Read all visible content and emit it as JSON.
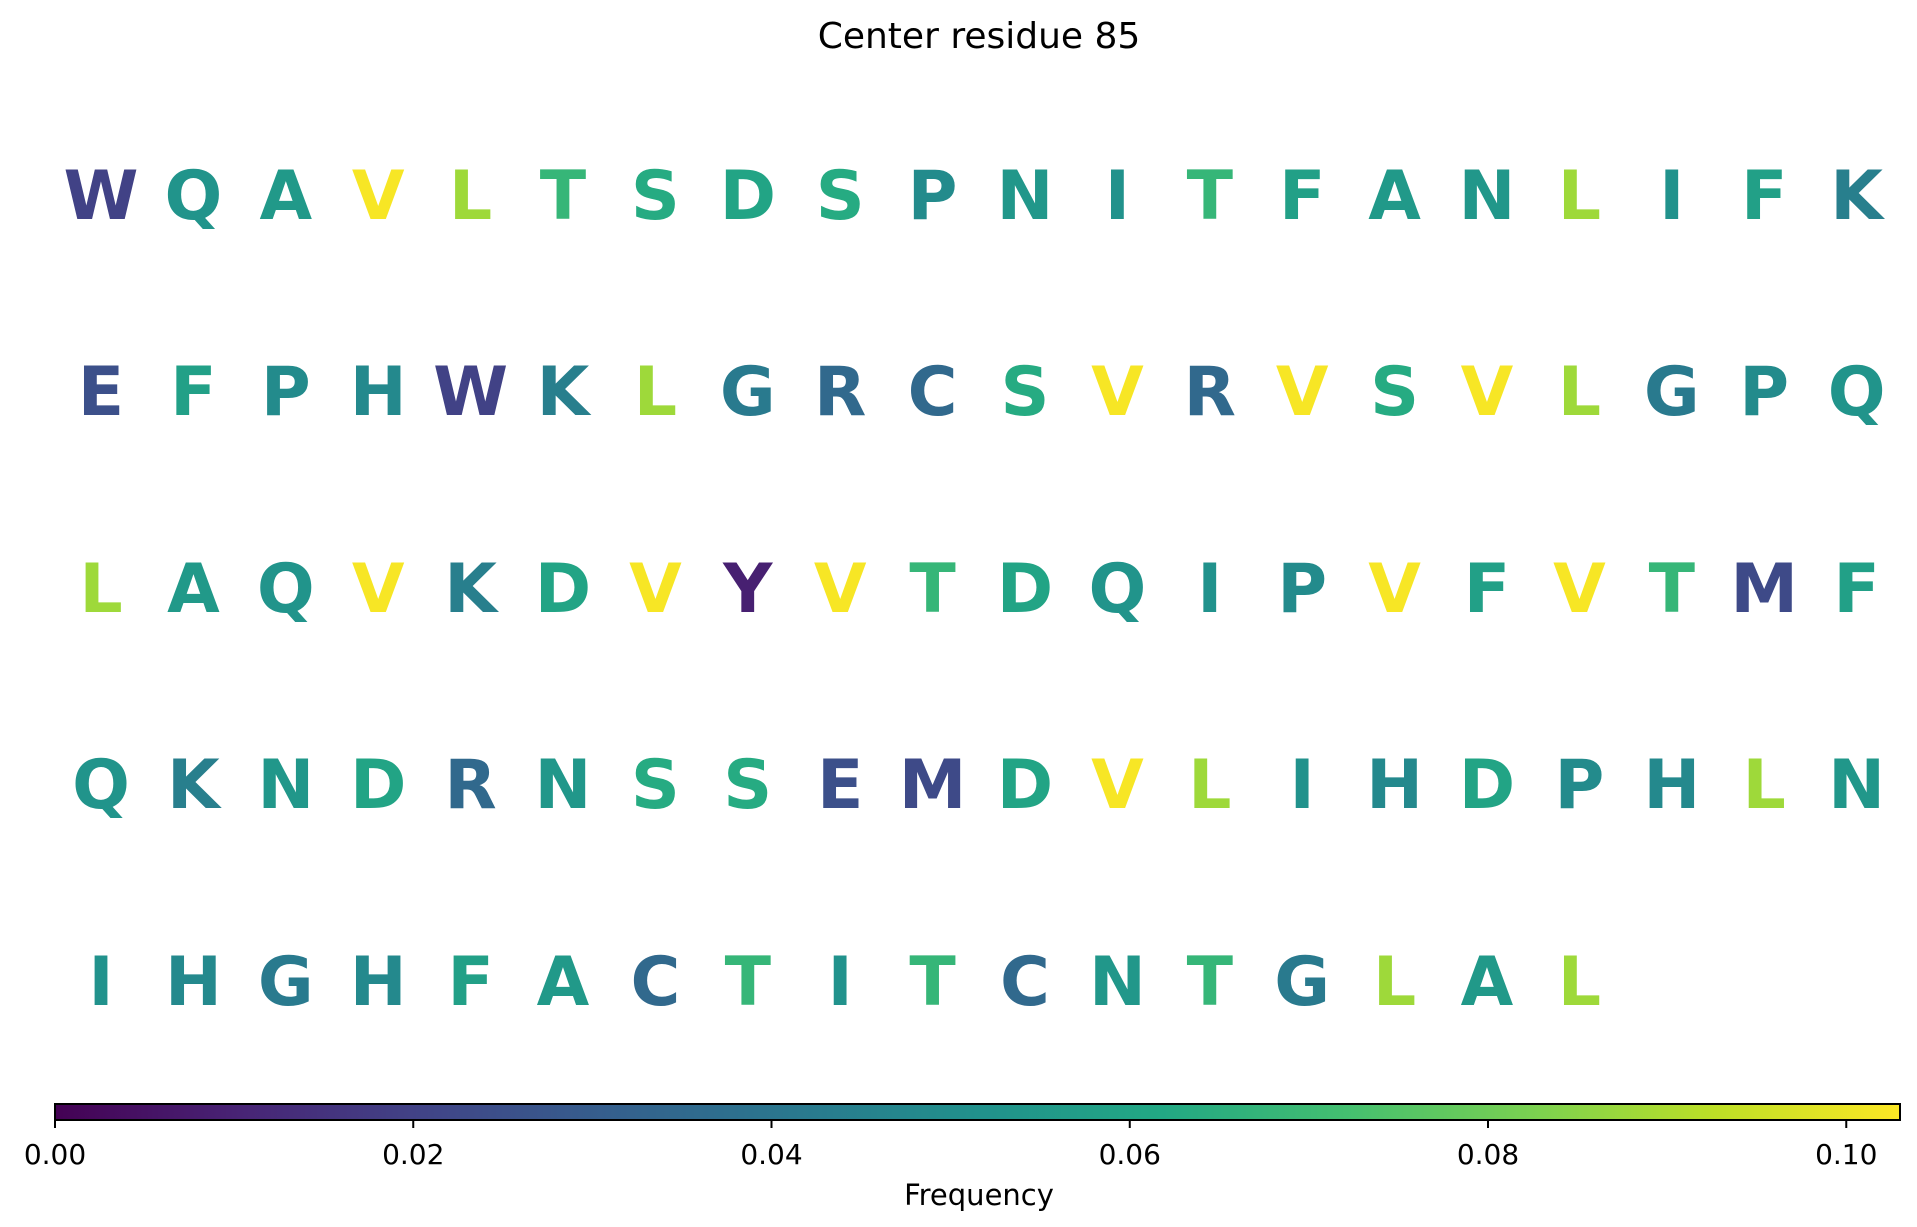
{
  "chart_data": {
    "type": "heatmap",
    "title": "Center residue 85",
    "colormap": "viridis",
    "columns_per_row": 20,
    "rows": [
      {
        "letters": [
          "W",
          "Q",
          "A",
          "V",
          "L",
          "T",
          "S",
          "D",
          "S",
          "P",
          "N",
          "I",
          "T",
          "F",
          "A",
          "N",
          "L",
          "I",
          "F",
          "K"
        ],
        "values": [
          0.02,
          0.053,
          0.055,
          0.102,
          0.088,
          0.068,
          0.063,
          0.06,
          0.063,
          0.049,
          0.054,
          0.052,
          0.068,
          0.058,
          0.055,
          0.054,
          0.088,
          0.052,
          0.058,
          0.044
        ]
      },
      {
        "letters": [
          "E",
          "F",
          "P",
          "H",
          "W",
          "K",
          "L",
          "G",
          "R",
          "C",
          "S",
          "V",
          "R",
          "V",
          "S",
          "V",
          "L",
          "G",
          "P",
          "Q"
        ],
        "values": [
          0.025,
          0.058,
          0.049,
          0.048,
          0.02,
          0.044,
          0.088,
          0.042,
          0.035,
          0.035,
          0.063,
          0.102,
          0.035,
          0.102,
          0.063,
          0.102,
          0.088,
          0.042,
          0.049,
          0.053
        ]
      },
      {
        "letters": [
          "L",
          "A",
          "Q",
          "V",
          "K",
          "D",
          "V",
          "Y",
          "V",
          "T",
          "D",
          "Q",
          "I",
          "P",
          "V",
          "F",
          "V",
          "T",
          "M",
          "F"
        ],
        "values": [
          0.088,
          0.055,
          0.053,
          0.102,
          0.044,
          0.06,
          0.102,
          0.009,
          0.102,
          0.068,
          0.06,
          0.053,
          0.052,
          0.049,
          0.102,
          0.058,
          0.102,
          0.068,
          0.023,
          0.058
        ]
      },
      {
        "letters": [
          "Q",
          "K",
          "N",
          "D",
          "R",
          "N",
          "S",
          "S",
          "E",
          "M",
          "D",
          "V",
          "L",
          "I",
          "H",
          "D",
          "P",
          "H",
          "L",
          "N"
        ],
        "values": [
          0.053,
          0.044,
          0.054,
          0.06,
          0.035,
          0.054,
          0.063,
          0.063,
          0.025,
          0.023,
          0.06,
          0.102,
          0.088,
          0.052,
          0.048,
          0.06,
          0.049,
          0.048,
          0.088,
          0.054
        ]
      },
      {
        "letters": [
          "I",
          "H",
          "G",
          "H",
          "F",
          "A",
          "C",
          "T",
          "I",
          "T",
          "C",
          "N",
          "T",
          "G",
          "L",
          "A",
          "L"
        ],
        "values": [
          0.052,
          0.048,
          0.042,
          0.048,
          0.058,
          0.055,
          0.035,
          0.068,
          0.052,
          0.068,
          0.035,
          0.054,
          0.068,
          0.042,
          0.088,
          0.055,
          0.088
        ]
      }
    ],
    "colorbar": {
      "label": "Frequency",
      "range": [
        0.0,
        0.103
      ],
      "ticks": [
        0.0,
        0.02,
        0.04,
        0.06,
        0.08,
        0.1
      ],
      "tick_labels": [
        "0.00",
        "0.02",
        "0.04",
        "0.06",
        "0.08",
        "0.10"
      ]
    }
  }
}
